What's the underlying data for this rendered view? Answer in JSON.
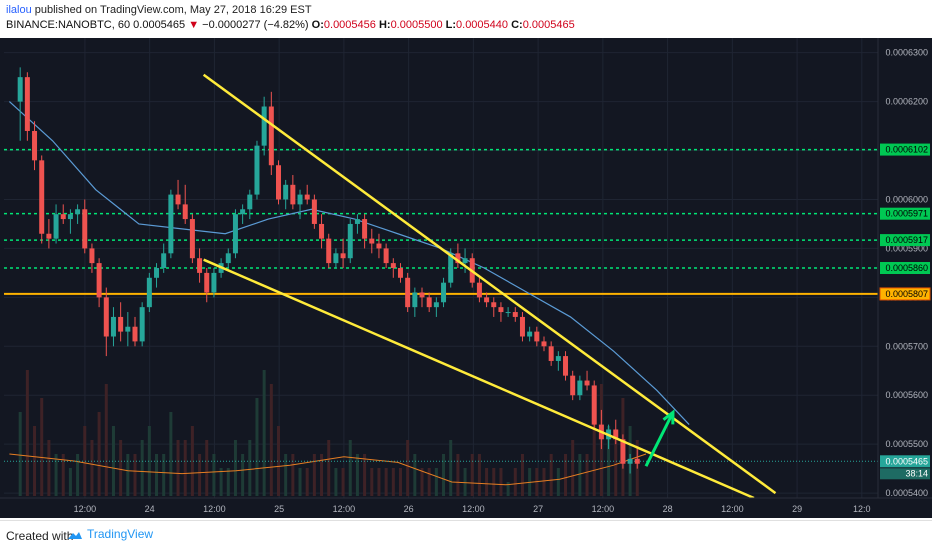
{
  "header": {
    "author": "ilalou",
    "published": " published on TradingView.com, May 27, 2018 16:29 EST",
    "symbol": "BINANCE:NANOBTC, 60",
    "last": "0.0005465",
    "change_arrow": "▼",
    "change": "−0.0000277 (−4.82%)",
    "o_label": "O:",
    "o": "0.0005456",
    "h_label": "H:",
    "h": "0.0005500",
    "l_label": "L:",
    "l": "0.0005440",
    "c_label": "C:",
    "c": "0.0005465"
  },
  "footer": {
    "created_with": "Created with",
    "brand": "TradingView",
    "brand_icon": "tradingview-cloud-icon"
  },
  "chart_data": {
    "type": "candlestick",
    "colors": {
      "background": "#131722",
      "up": "#26a69a",
      "down": "#ef5350",
      "ma": "#5b9bd5",
      "trendline": "#ffeb3b",
      "support_resistance": "#00e676",
      "major_level": "#ffb300",
      "volume_ma": "#e67e22",
      "target_arrow": "#00e676"
    },
    "ylim": [
      0.000539,
      0.000633
    ],
    "y_ticks": [
      "0.0006300",
      "0.0006200",
      "0.0006100",
      "0.0006000",
      "0.0005900",
      "0.0005800",
      "0.0005700",
      "0.0005600",
      "0.0005500",
      "0.0005400"
    ],
    "x_ticks": [
      {
        "label": "12:00",
        "t": 12
      },
      {
        "label": "24",
        "t": 24
      },
      {
        "label": "12:00",
        "t": 36
      },
      {
        "label": "25",
        "t": 48
      },
      {
        "label": "12:00",
        "t": 60
      },
      {
        "label": "26",
        "t": 72
      },
      {
        "label": "12:00",
        "t": 84
      },
      {
        "label": "27",
        "t": 96
      },
      {
        "label": "12:00",
        "t": 108
      },
      {
        "label": "28",
        "t": 120
      },
      {
        "label": "12:00",
        "t": 132
      },
      {
        "label": "29",
        "t": 144
      },
      {
        "label": "12:0",
        "t": 156
      }
    ],
    "xlim": [
      -3,
      159
    ],
    "levels": [
      {
        "label": "0.0006102",
        "value": 0.0006102,
        "style": "dotted"
      },
      {
        "label": "0.0005971",
        "value": 0.0005971,
        "style": "dotted"
      },
      {
        "label": "0.0005917",
        "value": 0.0005917,
        "style": "dotted"
      },
      {
        "label": "0.0005860",
        "value": 0.000586,
        "style": "dotted"
      },
      {
        "label": "0.0005807",
        "value": 0.0005807,
        "style": "solid"
      }
    ],
    "last_price": {
      "label": "0.0005465",
      "value": 0.0005465
    },
    "countdown": "38:14",
    "trendlines": [
      {
        "from": [
          34,
          0.0006255
        ],
        "to": [
          140,
          0.00054
        ]
      },
      {
        "from": [
          34,
          0.0005877
        ],
        "to": [
          136,
          0.000539
        ]
      }
    ],
    "target_arrow": {
      "from": [
        116,
        0.0005455
      ],
      "to": [
        121,
        0.0005565
      ]
    },
    "ma_series": {
      "t": [
        -2,
        6,
        14,
        22,
        30,
        38,
        46,
        54,
        62,
        70,
        78,
        86,
        94,
        102,
        110,
        118,
        124
      ],
      "v": [
        0.00062,
        0.000612,
        0.000602,
        0.000595,
        0.000594,
        0.000593,
        0.000596,
        0.000598,
        0.000596,
        0.000593,
        0.00059,
        0.000586,
        0.000581,
        0.000576,
        0.000569,
        0.000561,
        0.000554
      ]
    },
    "volume_ma": {
      "t": [
        -2,
        10,
        20,
        30,
        40,
        50,
        60,
        70,
        80,
        90,
        100,
        110,
        116
      ],
      "v": [
        0.3,
        0.25,
        0.18,
        0.16,
        0.18,
        0.22,
        0.28,
        0.24,
        0.1,
        0.08,
        0.12,
        0.22,
        0.3
      ]
    },
    "candles": [
      [
        0.00062,
        0.000627,
        0.000612,
        0.000625
      ],
      [
        0.000625,
        0.000626,
        0.000612,
        0.000614
      ],
      [
        0.000614,
        0.000616,
        0.000606,
        0.000608
      ],
      [
        0.000608,
        0.000609,
        0.000591,
        0.000593
      ],
      [
        0.000593,
        0.000596,
        0.00059,
        0.000592
      ],
      [
        0.000592,
        0.000599,
        0.000591,
        0.000597
      ],
      [
        0.000597,
        0.000599,
        0.000595,
        0.000596
      ],
      [
        0.000596,
        0.000598,
        0.000593,
        0.000597
      ],
      [
        0.000597,
        0.000599,
        0.000595,
        0.000598
      ],
      [
        0.000598,
        0.0006,
        0.000589,
        0.00059
      ],
      [
        0.00059,
        0.000591,
        0.000585,
        0.000587
      ],
      [
        0.000587,
        0.000588,
        0.000578,
        0.00058
      ],
      [
        0.00058,
        0.000582,
        0.000568,
        0.000572
      ],
      [
        0.000572,
        0.000578,
        0.00057,
        0.000576
      ],
      [
        0.000576,
        0.000579,
        0.000571,
        0.000573
      ],
      [
        0.000573,
        0.000577,
        0.00057,
        0.000574
      ],
      [
        0.000574,
        0.000576,
        0.00057,
        0.000571
      ],
      [
        0.000571,
        0.000579,
        0.00057,
        0.000578
      ],
      [
        0.000578,
        0.000585,
        0.000577,
        0.000584
      ],
      [
        0.000584,
        0.000587,
        0.000582,
        0.000586
      ],
      [
        0.000586,
        0.000591,
        0.000585,
        0.000589
      ],
      [
        0.000589,
        0.000602,
        0.000588,
        0.000601
      ],
      [
        0.000601,
        0.000604,
        0.000598,
        0.000599
      ],
      [
        0.000599,
        0.000603,
        0.000595,
        0.000596
      ],
      [
        0.000596,
        0.000597,
        0.000587,
        0.000588
      ],
      [
        0.000588,
        0.00059,
        0.000583,
        0.000585
      ],
      [
        0.000585,
        0.000586,
        0.000579,
        0.000581
      ],
      [
        0.000581,
        0.000586,
        0.00058,
        0.000585
      ],
      [
        0.000585,
        0.000588,
        0.000584,
        0.000587
      ],
      [
        0.000587,
        0.00059,
        0.000586,
        0.000589
      ],
      [
        0.000589,
        0.000598,
        0.000588,
        0.000597
      ],
      [
        0.000597,
        0.000599,
        0.000595,
        0.000598
      ],
      [
        0.000598,
        0.000602,
        0.000596,
        0.000601
      ],
      [
        0.000601,
        0.000612,
        0.0006,
        0.000611
      ],
      [
        0.000611,
        0.000621,
        0.000609,
        0.000619
      ],
      [
        0.000619,
        0.000622,
        0.000605,
        0.000607
      ],
      [
        0.000607,
        0.000608,
        0.000599,
        0.0006
      ],
      [
        0.0006,
        0.000604,
        0.000598,
        0.000603
      ],
      [
        0.000603,
        0.000605,
        0.000598,
        0.000599
      ],
      [
        0.000599,
        0.000602,
        0.000596,
        0.000601
      ],
      [
        0.000601,
        0.000603,
        0.000599,
        0.0006
      ],
      [
        0.0006,
        0.000601,
        0.000594,
        0.000595
      ],
      [
        0.000595,
        0.000597,
        0.00059,
        0.000592
      ],
      [
        0.000592,
        0.000593,
        0.000586,
        0.000587
      ],
      [
        0.000587,
        0.00059,
        0.000586,
        0.000589
      ],
      [
        0.000589,
        0.000592,
        0.000586,
        0.000588
      ],
      [
        0.000588,
        0.000596,
        0.000587,
        0.000595
      ],
      [
        0.000595,
        0.000597,
        0.000593,
        0.000596
      ],
      [
        0.000596,
        0.000597,
        0.00059,
        0.000592
      ],
      [
        0.000592,
        0.000594,
        0.000589,
        0.000591
      ],
      [
        0.000591,
        0.000593,
        0.000588,
        0.00059
      ],
      [
        0.00059,
        0.000591,
        0.000586,
        0.000587
      ],
      [
        0.000587,
        0.000588,
        0.000584,
        0.000586
      ],
      [
        0.000586,
        0.000587,
        0.000583,
        0.000584
      ],
      [
        0.000584,
        0.000585,
        0.000577,
        0.000578
      ],
      [
        0.000578,
        0.000582,
        0.000576,
        0.000581
      ],
      [
        0.000581,
        0.000582,
        0.000578,
        0.00058
      ],
      [
        0.00058,
        0.000581,
        0.000577,
        0.000578
      ],
      [
        0.000578,
        0.00058,
        0.000576,
        0.000579
      ],
      [
        0.000579,
        0.000584,
        0.000578,
        0.000583
      ],
      [
        0.000583,
        0.00059,
        0.000582,
        0.000589
      ],
      [
        0.000589,
        0.000591,
        0.000586,
        0.000587
      ],
      [
        0.000587,
        0.00059,
        0.000585,
        0.000588
      ],
      [
        0.000588,
        0.000589,
        0.000582,
        0.000583
      ],
      [
        0.000583,
        0.000584,
        0.000579,
        0.00058
      ],
      [
        0.00058,
        0.000581,
        0.000578,
        0.000579
      ],
      [
        0.000579,
        0.00058,
        0.000576,
        0.000578
      ],
      [
        0.000578,
        0.000579,
        0.000575,
        0.000577
      ],
      [
        0.000577,
        0.000578,
        0.000576,
        0.000577
      ],
      [
        0.000577,
        0.000578,
        0.000575,
        0.000576
      ],
      [
        0.000576,
        0.000577,
        0.000571,
        0.000572
      ],
      [
        0.000572,
        0.000574,
        0.000571,
        0.000573
      ],
      [
        0.000573,
        0.000574,
        0.00057,
        0.000571
      ],
      [
        0.000571,
        0.000572,
        0.000569,
        0.00057
      ],
      [
        0.00057,
        0.000571,
        0.000566,
        0.000567
      ],
      [
        0.000567,
        0.000569,
        0.000565,
        0.000568
      ],
      [
        0.000568,
        0.000569,
        0.000563,
        0.000564
      ],
      [
        0.000564,
        0.000565,
        0.000559,
        0.00056
      ],
      [
        0.00056,
        0.000564,
        0.000559,
        0.000563
      ],
      [
        0.000563,
        0.000565,
        0.000561,
        0.000562
      ],
      [
        0.000562,
        0.000563,
        0.000553,
        0.000554
      ],
      [
        0.000554,
        0.000557,
        0.000549,
        0.000551
      ],
      [
        0.000551,
        0.000554,
        0.000549,
        0.000553
      ],
      [
        0.000553,
        0.000555,
        0.00055,
        0.000551
      ],
      [
        0.000551,
        0.000552,
        0.000545,
        0.000546
      ],
      [
        0.000546,
        0.000548,
        0.000544,
        0.000547
      ],
      [
        0.000547,
        0.000549,
        0.000545,
        0.000546
      ]
    ],
    "volume": [
      0.6,
      0.9,
      0.5,
      0.7,
      0.4,
      0.3,
      0.3,
      0.2,
      0.3,
      0.5,
      0.4,
      0.6,
      0.8,
      0.5,
      0.4,
      0.3,
      0.3,
      0.4,
      0.5,
      0.3,
      0.3,
      0.6,
      0.4,
      0.4,
      0.5,
      0.3,
      0.4,
      0.3,
      0.2,
      0.2,
      0.4,
      0.3,
      0.4,
      0.7,
      0.9,
      0.8,
      0.5,
      0.3,
      0.3,
      0.2,
      0.2,
      0.3,
      0.3,
      0.4,
      0.2,
      0.2,
      0.4,
      0.3,
      0.3,
      0.2,
      0.2,
      0.2,
      0.2,
      0.2,
      0.4,
      0.3,
      0.2,
      0.2,
      0.2,
      0.3,
      0.4,
      0.3,
      0.2,
      0.3,
      0.3,
      0.2,
      0.2,
      0.2,
      0.1,
      0.2,
      0.3,
      0.2,
      0.2,
      0.2,
      0.3,
      0.2,
      0.3,
      0.4,
      0.3,
      0.3,
      0.6,
      0.8,
      0.5,
      0.4,
      0.7,
      0.5,
      0.4
    ]
  }
}
